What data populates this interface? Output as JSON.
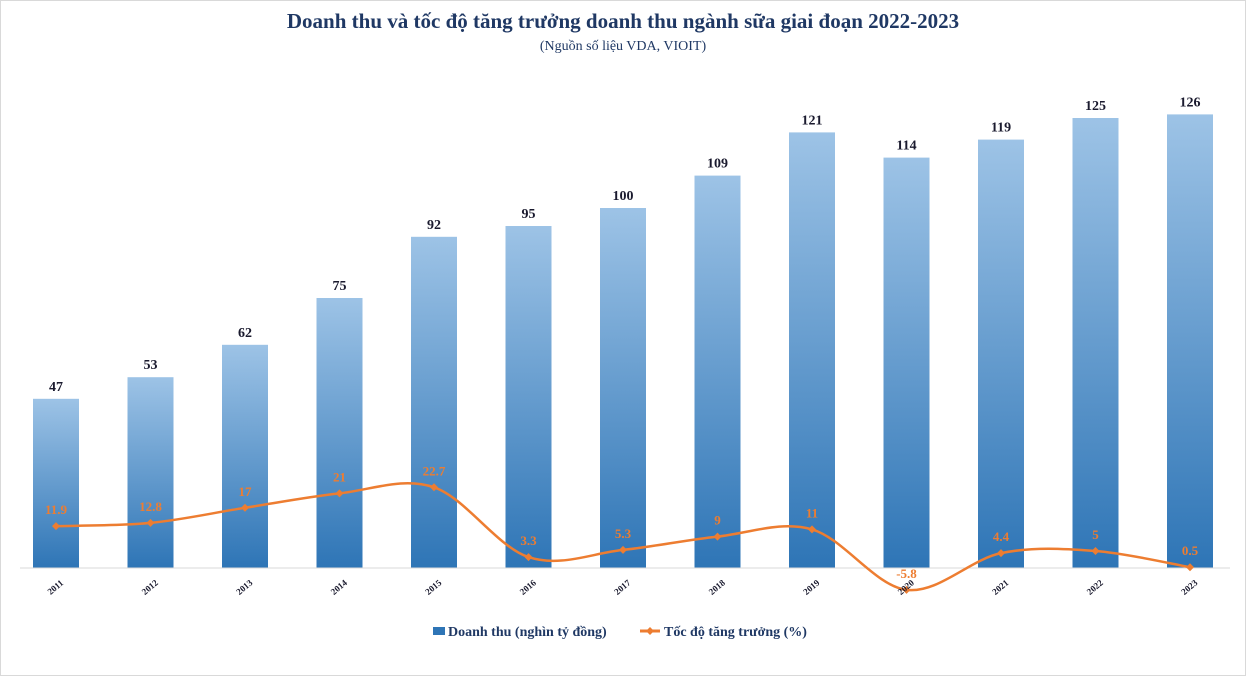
{
  "chart_data": {
    "type": "bar+line",
    "title": "Doanh thu và tốc độ tăng trưởng doanh thu ngành sữa giai đoạn 2022-2023",
    "subtitle": "(Nguồn số liệu VDA, VIOIT)",
    "categories": [
      "2011",
      "2012",
      "2013",
      "2014",
      "2015",
      "2016",
      "2017",
      "2018",
      "2019",
      "2020",
      "2021",
      "2022",
      "2023"
    ],
    "series": [
      {
        "name": "Doanh thu (nghìn tỷ đồng)",
        "type": "bar",
        "values": [
          47,
          53,
          62,
          75,
          92,
          95,
          100,
          109,
          121,
          114,
          119,
          125,
          126
        ],
        "value_labels": [
          "47",
          "53",
          "62",
          "75",
          "92",
          "95",
          "100",
          "109",
          "121",
          "114",
          "119",
          "125",
          "126"
        ]
      },
      {
        "name": "Tốc độ tăng trưởng (%)",
        "type": "line",
        "smooth": true,
        "values": [
          11.9,
          12.8,
          17,
          21,
          22.7,
          3.3,
          5.3,
          9,
          11,
          -5.8,
          4.4,
          5,
          0.5
        ],
        "value_labels": [
          "11.9",
          "12.8",
          "17",
          "21",
          "22.7",
          "3.3",
          "5.3",
          "9",
          "11",
          "-5.8",
          "4.4",
          "5",
          "0.5"
        ]
      }
    ],
    "legend_position": "bottom",
    "grid": false,
    "colors": {
      "bar_top": "#9dc3e6",
      "bar_bottom": "#2e75b6",
      "line": "#ed7d31",
      "title": "#1f3864"
    }
  }
}
